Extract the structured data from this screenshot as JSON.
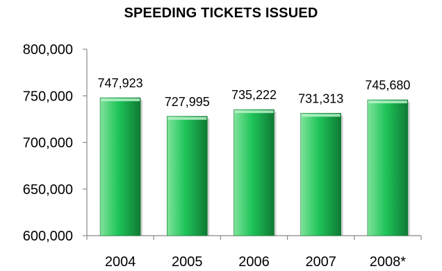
{
  "chart_data": {
    "type": "bar",
    "title": "SPEEDING TICKETS ISSUED",
    "xlabel": "",
    "ylabel": "",
    "categories": [
      "2004",
      "2005",
      "2006",
      "2007",
      "2008*"
    ],
    "values": [
      747923,
      727995,
      735222,
      731313,
      745680
    ],
    "data_labels": [
      "747,923",
      "727,995",
      "735,222",
      "731,313",
      "745,680"
    ],
    "ylim": [
      600000,
      800000
    ],
    "yticks": [
      600000,
      650000,
      700000,
      750000,
      800000
    ],
    "ytick_labels": [
      "600,000",
      "650,000",
      "700,000",
      "750,000",
      "800,000"
    ],
    "grid": false,
    "legend": "none",
    "colors": {
      "bar_light": "#7fe39a",
      "bar_mid": "#1fc45a",
      "bar_dark": "#0f7a34",
      "bar_top": "#b8f2c8",
      "axis": "#888888"
    }
  }
}
